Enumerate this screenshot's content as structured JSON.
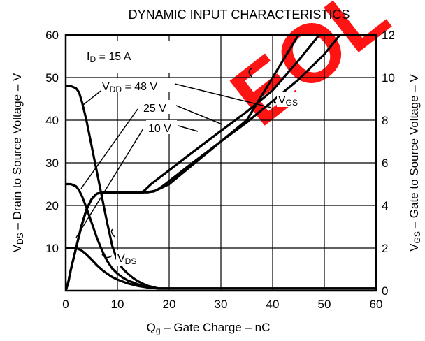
{
  "chart_data": {
    "type": "line",
    "title": "DYNAMIC INPUT CHARACTERISTICS",
    "xlabel": {
      "main": "Q",
      "sub": "g",
      "rest": " – Gate Charge – nC"
    },
    "ylabel_left": {
      "main": "V",
      "sub": "DS",
      "rest": " – Drain to Source Voltage – V"
    },
    "ylabel_right": {
      "main": "V",
      "sub": "GS",
      "rest": " – Gate to Source Voltage – V"
    },
    "xlim": [
      0,
      60
    ],
    "ylim_left": [
      0,
      60
    ],
    "ylim_right": [
      0,
      12
    ],
    "x_ticks": [
      "0",
      "10",
      "20",
      "30",
      "40",
      "50",
      "60"
    ],
    "y_left_ticks": [
      "10",
      "20",
      "30",
      "40",
      "50",
      "60"
    ],
    "y_right_ticks": [
      "0",
      "2",
      "4",
      "6",
      "8",
      "10",
      "12"
    ],
    "grid": true,
    "watermark": "EOL",
    "watermark_color": "#ff0000",
    "condition": {
      "main": "I",
      "sub": "D",
      "rest": " = 15 A"
    },
    "vdd_labels": [
      {
        "main": "V",
        "sub": "DD",
        "rest": " = 48 V"
      },
      {
        "text": "25 V"
      },
      {
        "text": "10 V"
      }
    ],
    "curve_labels": {
      "vgs": {
        "main": "V",
        "sub": "GS"
      },
      "vds": {
        "main": "V",
        "sub": "DS"
      }
    },
    "series": [
      {
        "group": "VDS",
        "vdd": 48,
        "axis": "left",
        "x": [
          0,
          1,
          2,
          2.6,
          3.2,
          4,
          5,
          6,
          7,
          8,
          9,
          10,
          11,
          12,
          13,
          14,
          15,
          16,
          17,
          18,
          60
        ],
        "y": [
          48,
          48,
          47.5,
          46.5,
          44,
          40,
          34,
          28,
          22,
          16,
          10.5,
          7,
          5.2,
          4,
          3,
          2.2,
          1.6,
          1.1,
          0.8,
          0.5,
          0.5
        ]
      },
      {
        "group": "VDS",
        "vdd": 25,
        "axis": "left",
        "x": [
          0,
          1,
          2,
          2.6,
          3.2,
          4,
          5,
          6,
          7,
          8,
          9,
          10,
          11,
          12,
          14,
          16,
          18,
          60
        ],
        "y": [
          25,
          25,
          24.5,
          23.5,
          22,
          19.5,
          16,
          12.5,
          9.5,
          7,
          5.2,
          4,
          3.1,
          2.4,
          1.5,
          0.9,
          0.5,
          0.5
        ]
      },
      {
        "group": "VDS",
        "vdd": 10,
        "axis": "left",
        "x": [
          0,
          1,
          2,
          3,
          4,
          5,
          6,
          7,
          8,
          9,
          10,
          12,
          14,
          16,
          18,
          60
        ],
        "y": [
          10,
          10,
          10,
          9.5,
          8.5,
          7.3,
          6,
          4.9,
          4,
          3.2,
          2.6,
          1.7,
          1.1,
          0.7,
          0.5,
          0.5
        ]
      },
      {
        "group": "VGS",
        "vdd": 10,
        "axis": "right",
        "x": [
          0,
          0.5,
          1,
          2,
          3,
          4,
          5,
          6,
          7,
          8,
          10,
          13,
          17,
          20,
          25,
          30,
          35,
          40,
          45
        ],
        "y": [
          0,
          0.4,
          1,
          2,
          3,
          3.8,
          4.3,
          4.55,
          4.6,
          4.6,
          4.6,
          4.6,
          4.65,
          5,
          6,
          7,
          8,
          10,
          12
        ]
      },
      {
        "group": "VGS",
        "vdd": 25,
        "axis": "right",
        "x": [
          0,
          0.5,
          1,
          2,
          3,
          4,
          5,
          6,
          7,
          8,
          10,
          13,
          15,
          16.5,
          20,
          24,
          30,
          35,
          40,
          45,
          49
        ],
        "y": [
          0,
          0.4,
          1,
          2,
          3,
          3.8,
          4.3,
          4.55,
          4.6,
          4.6,
          4.6,
          4.6,
          4.65,
          5,
          5.65,
          6.4,
          7.5,
          8.4,
          9.4,
          10.8,
          12
        ]
      },
      {
        "group": "VGS",
        "vdd": 48,
        "axis": "right",
        "x": [
          0,
          0.5,
          1,
          2,
          3,
          4,
          5,
          6,
          7,
          8,
          10,
          13,
          16,
          17.5,
          19,
          24,
          30,
          35,
          40,
          45,
          50,
          53
        ],
        "y": [
          0,
          0.4,
          1,
          2,
          3,
          3.8,
          4.3,
          4.55,
          4.6,
          4.6,
          4.6,
          4.6,
          4.62,
          4.7,
          4.95,
          5.9,
          7,
          7.9,
          8.9,
          9.9,
          11.1,
          12
        ]
      }
    ]
  }
}
